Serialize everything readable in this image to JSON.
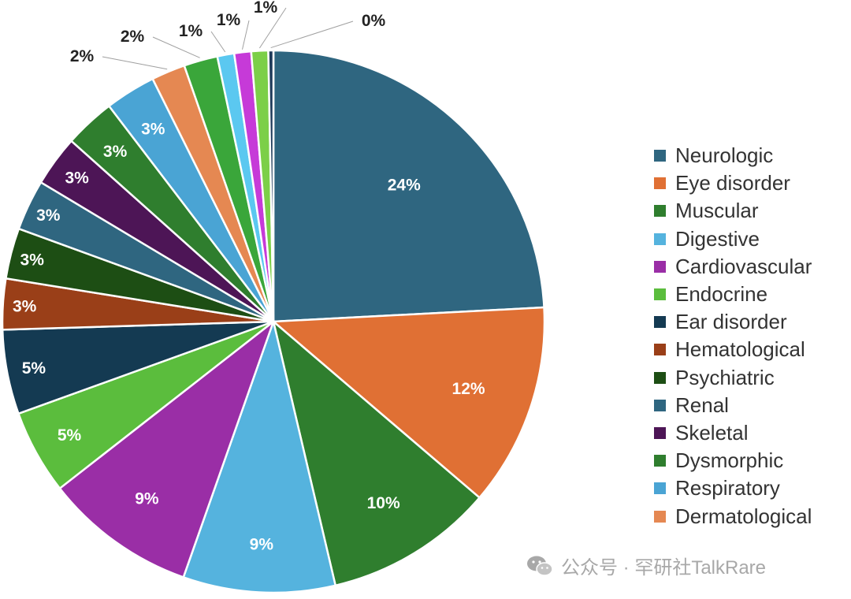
{
  "chart_data": {
    "type": "pie",
    "categories": [
      "Neurologic",
      "Eye disorder",
      "Muscular",
      "Digestive",
      "Cardiovascular",
      "Endocrine",
      "Ear disorder",
      "Hematological",
      "Psychiatric",
      "Renal",
      "Skeletal",
      "Dysmorphic",
      "Respiratory",
      "Dermatological",
      "",
      "",
      "",
      "",
      ""
    ],
    "values": [
      24,
      12,
      10,
      9,
      9,
      5,
      5,
      3,
      3,
      3,
      3,
      3,
      3,
      2,
      2,
      1,
      1,
      1,
      0.3
    ],
    "labels": [
      "24%",
      "12%",
      "10%",
      "9%",
      "9%",
      "5%",
      "5%",
      "3%",
      "3%",
      "3%",
      "3%",
      "3%",
      "3%",
      "2%",
      "2%",
      "1%",
      "1%",
      "1%",
      "0%"
    ],
    "colors": [
      "#2f6680",
      "#e07034",
      "#2f7e2e",
      "#55b3de",
      "#9a2ea6",
      "#5bbd3d",
      "#143a52",
      "#9a3f18",
      "#1d4e14",
      "#2f6680",
      "#4d1556",
      "#2f7e2e",
      "#4aa4d4",
      "#e58852",
      "#3aa63a",
      "#5bc8f0",
      "#c63ad8",
      "#7ccf48",
      "#1e3a5a"
    ],
    "legend": [
      "Neurologic",
      "Eye disorder",
      "Muscular",
      "Digestive",
      "Cardiovascular",
      "Endocrine",
      "Ear disorder",
      "Hematological",
      "Psychiatric",
      "Renal",
      "Skeletal",
      "Dysmorphic",
      "Respiratory",
      "Dermatological"
    ],
    "legend_placement": "right",
    "start": "12 o'clock, clockwise"
  },
  "watermark": {
    "icon": "wechat-icon",
    "text": "公众号 · 罕研社TalkRare"
  }
}
